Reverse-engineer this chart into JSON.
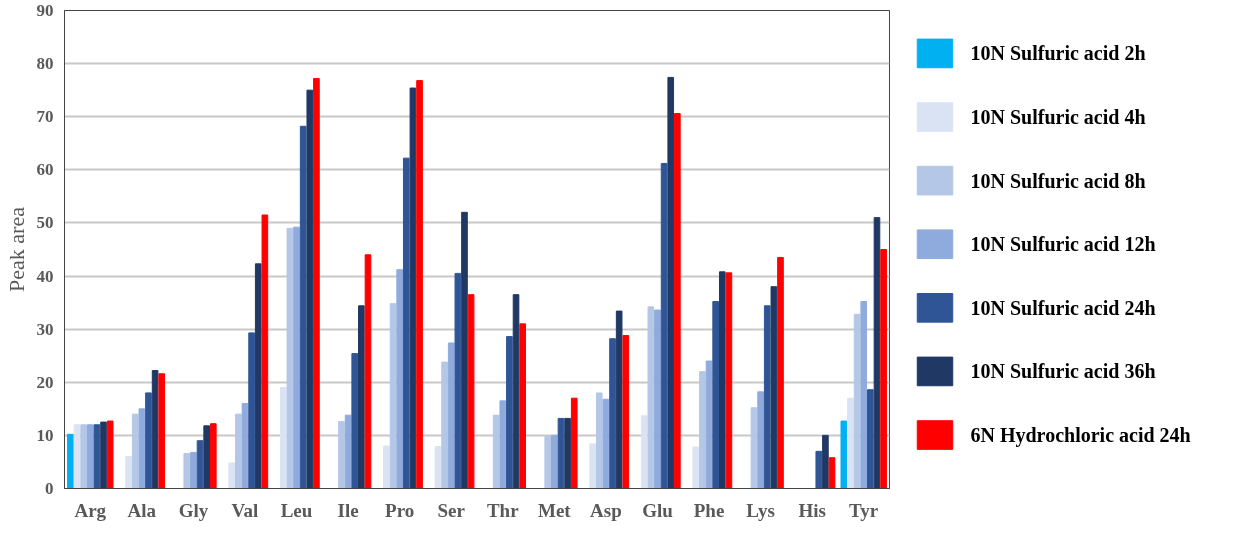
{
  "chart_data": {
    "type": "bar",
    "ylabel": "Peak area",
    "categories": [
      "Arg",
      "Ala",
      "Gly",
      "Val",
      "Leu",
      "Ile",
      "Pro",
      "Ser",
      "Thr",
      "Met",
      "Asp",
      "Glu",
      "Phe",
      "Lys",
      "His",
      "Tyr"
    ],
    "ylim": [
      0,
      90
    ],
    "yticks": [
      0,
      10,
      20,
      30,
      40,
      50,
      60,
      70,
      80,
      90
    ],
    "grid": "y",
    "legend": "right",
    "series": [
      {
        "name": "10N Sulfuric acid 2h",
        "color": "#00b0f0",
        "values": [
          10.2,
          null,
          null,
          null,
          null,
          null,
          null,
          null,
          null,
          null,
          null,
          null,
          null,
          null,
          null,
          12.7
        ]
      },
      {
        "name": "10N Sulfuric acid 4h",
        "color": "#dae3f3",
        "values": [
          12,
          6,
          null,
          4.8,
          19,
          null,
          8,
          7.9,
          null,
          null,
          8.4,
          13.7,
          7.8,
          null,
          null,
          17
        ]
      },
      {
        "name": "10N Sulfuric acid 8h",
        "color": "#b4c7e7",
        "values": [
          12,
          14,
          6.6,
          14,
          49,
          12.6,
          34.8,
          23.8,
          13.8,
          9.8,
          18,
          34.2,
          22,
          15.2,
          null,
          32.8
        ]
      },
      {
        "name": "10N Sulfuric acid 12h",
        "color": "#8faadc",
        "values": [
          12,
          15,
          6.8,
          16,
          49.2,
          13.8,
          41.2,
          27.4,
          16.5,
          10,
          16.8,
          33.6,
          24,
          18.2,
          null,
          35.2
        ]
      },
      {
        "name": "10N Sulfuric acid 24h",
        "color": "#2f5597",
        "values": [
          12,
          18,
          9,
          29.3,
          68.2,
          25.4,
          62.2,
          40.5,
          28.6,
          13.2,
          28.2,
          61.2,
          35.2,
          34.4,
          7,
          18.6
        ]
      },
      {
        "name": "10N Sulfuric acid 36h",
        "color": "#203864",
        "values": [
          12.5,
          22.2,
          11.8,
          42.3,
          75,
          34.4,
          75.4,
          52,
          36.5,
          13.2,
          33.4,
          77.4,
          40.8,
          38,
          10,
          51
        ]
      },
      {
        "name": "6N Hydrochloric acid 24h",
        "color": "#ff0000",
        "values": [
          12.7,
          21.6,
          12.2,
          51.5,
          77.2,
          44,
          76.8,
          36.5,
          31,
          17,
          28.8,
          70.6,
          40.6,
          43.5,
          5.8,
          45
        ]
      }
    ]
  }
}
